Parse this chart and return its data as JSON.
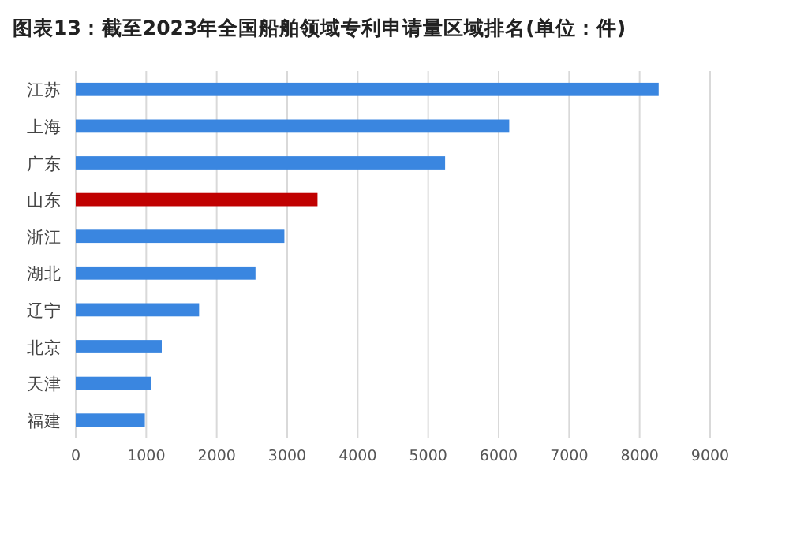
{
  "chart_data": {
    "type": "bar",
    "orientation": "horizontal",
    "title": "图表13：截至2023年全国船舶领域专利申请量区域排名(单位：件)",
    "categories": [
      "江苏",
      "上海",
      "广东",
      "山东",
      "浙江",
      "湖北",
      "辽宁",
      "北京",
      "天津",
      "福建"
    ],
    "values": [
      8270,
      6150,
      5240,
      3430,
      2960,
      2550,
      1750,
      1220,
      1070,
      980
    ],
    "colors": [
      "#3a86e0",
      "#3a86e0",
      "#3a86e0",
      "#c00000",
      "#3a86e0",
      "#3a86e0",
      "#3a86e0",
      "#3a86e0",
      "#3a86e0",
      "#3a86e0"
    ],
    "xlim": [
      0,
      9000
    ],
    "xticks": [
      0,
      1000,
      2000,
      3000,
      4000,
      5000,
      6000,
      7000,
      8000,
      9000
    ],
    "grid": "x"
  }
}
